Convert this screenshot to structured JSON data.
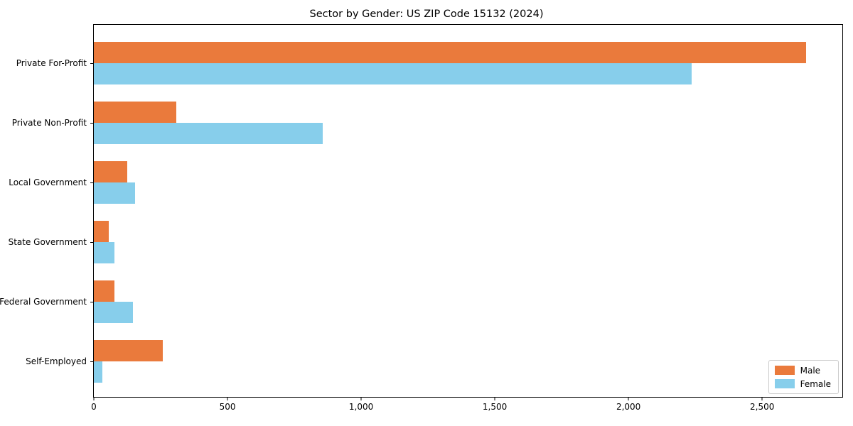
{
  "chart": {
    "title": "Sector by Gender: US ZIP Code 15132 (2024)"
  },
  "chart_data": {
    "type": "bar",
    "orientation": "horizontal",
    "title": "Sector by Gender: US ZIP Code 15132 (2024)",
    "categories": [
      "Private For-Profit",
      "Private Non-Profit",
      "Local Government",
      "State Government",
      "Federal Government",
      "Self-Employed"
    ],
    "series": [
      {
        "name": "Male",
        "color": "#EA7A3C",
        "values": [
          2665,
          307,
          126,
          57,
          78,
          258
        ]
      },
      {
        "name": "Female",
        "color": "#87CEEB",
        "values": [
          2235,
          855,
          155,
          77,
          147,
          33
        ]
      }
    ],
    "xlabel": "",
    "ylabel": "",
    "xlim": [
      0,
      2800
    ],
    "x_ticks": [
      0,
      500,
      1000,
      1500,
      2000,
      2500
    ],
    "x_tick_labels": [
      "0",
      "500",
      "1,000",
      "1,500",
      "2,000",
      "2,500"
    ],
    "grid": false,
    "legend_position": "lower right",
    "background_color": "#ffffff",
    "spine_color": "#000000"
  }
}
